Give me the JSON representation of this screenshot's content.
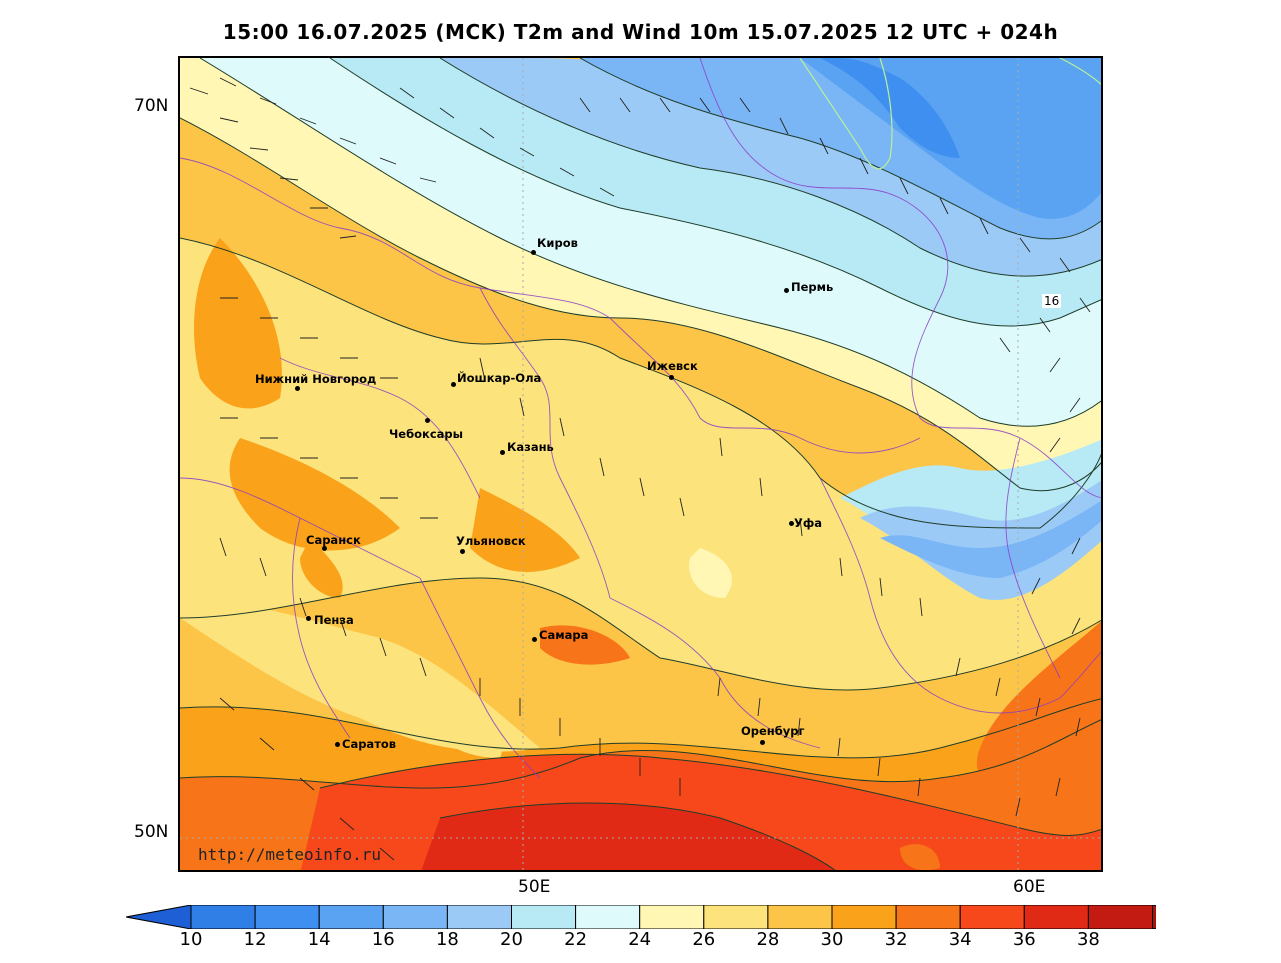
{
  "title": "15:00 16.07.2025 (MCK) T2m and Wind 10m 15.07.2025 12 UTC + 024h",
  "axes": {
    "lat_labels": [
      "70N",
      "50N"
    ],
    "lon_labels": [
      "50E",
      "60E"
    ]
  },
  "cities": [
    {
      "id": "kirov",
      "name": "Киров"
    },
    {
      "id": "perm",
      "name": "Пермь"
    },
    {
      "id": "nizhny",
      "name": "Нижний Новгород"
    },
    {
      "id": "yoshkar",
      "name": "Йошкар-Ола"
    },
    {
      "id": "izhevsk",
      "name": "Ижевск"
    },
    {
      "id": "cheboksary",
      "name": "Чебоксары"
    },
    {
      "id": "kazan",
      "name": "Казань"
    },
    {
      "id": "ufa",
      "name": "Уфа"
    },
    {
      "id": "saransk",
      "name": "Саранск"
    },
    {
      "id": "ulyanovsk",
      "name": "Ульяновск"
    },
    {
      "id": "penza",
      "name": "Пенза"
    },
    {
      "id": "samara",
      "name": "Самара"
    },
    {
      "id": "orenburg",
      "name": "Оренбург"
    },
    {
      "id": "saratov",
      "name": "Саратов"
    }
  ],
  "contour_label": "16",
  "source_url": "http://meteoinfo.ru",
  "colorbar": {
    "ticks": [
      "10",
      "12",
      "14",
      "16",
      "18",
      "20",
      "22",
      "24",
      "26",
      "28",
      "30",
      "32",
      "34",
      "36",
      "38"
    ],
    "colors": [
      "#2f7fe6",
      "#3f8ff0",
      "#5aa2f2",
      "#7ab6f5",
      "#9ccaf6",
      "#b7eaf5",
      "#dffafa",
      "#fff7b3",
      "#fce37c",
      "#fcc547",
      "#f9a21a",
      "#f77418",
      "#f6481a",
      "#e12a16",
      "#c31a12"
    ],
    "under_color": "#1f5fd6",
    "over_color": "#a8130e"
  }
}
